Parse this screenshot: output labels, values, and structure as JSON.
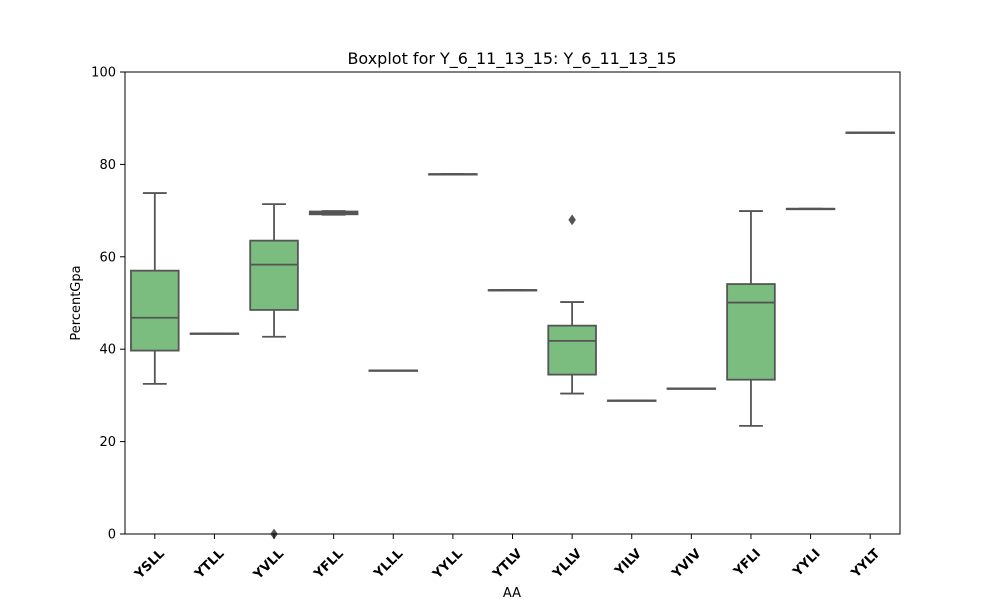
{
  "chart_data": {
    "type": "boxplot",
    "title": "Boxplot for Y_6_11_13_15: Y_6_11_13_15",
    "xlabel": "AA",
    "ylabel": "PercentGpa",
    "ylim": [
      0,
      100
    ],
    "yticks": [
      0,
      20,
      40,
      60,
      80,
      100
    ],
    "grid": false,
    "box_color": "#7bbc7f",
    "line_color": "#555555",
    "categories": [
      "YSLL",
      "YTLL",
      "YVLL",
      "YFLL",
      "YLLL",
      "YYLL",
      "YTLV",
      "YLLV",
      "YILV",
      "YVIV",
      "YFLI",
      "YYLI",
      "YYLT"
    ],
    "boxes": [
      {
        "whisker_low": 32.5,
        "q1": 39.7,
        "median": 46.8,
        "q3": 57.0,
        "whisker_high": 73.8,
        "outliers": []
      },
      {
        "whisker_low": 43.4,
        "q1": 43.4,
        "median": 43.4,
        "q3": 43.4,
        "whisker_high": 43.4,
        "outliers": []
      },
      {
        "whisker_low": 42.7,
        "q1": 48.5,
        "median": 58.3,
        "q3": 63.5,
        "whisker_high": 71.4,
        "outliers": [
          0.0
        ]
      },
      {
        "whisker_low": 69.1,
        "q1": 69.2,
        "median": 69.5,
        "q3": 69.8,
        "whisker_high": 69.9,
        "outliers": []
      },
      {
        "whisker_low": 35.4,
        "q1": 35.4,
        "median": 35.4,
        "q3": 35.4,
        "whisker_high": 35.4,
        "outliers": []
      },
      {
        "whisker_low": 77.9,
        "q1": 77.9,
        "median": 77.9,
        "q3": 77.9,
        "whisker_high": 77.9,
        "outliers": []
      },
      {
        "whisker_low": 52.8,
        "q1": 52.8,
        "median": 52.8,
        "q3": 52.8,
        "whisker_high": 52.8,
        "outliers": []
      },
      {
        "whisker_low": 30.4,
        "q1": 34.5,
        "median": 41.8,
        "q3": 45.1,
        "whisker_high": 50.2,
        "outliers": [
          68.0
        ]
      },
      {
        "whisker_low": 28.9,
        "q1": 28.9,
        "median": 28.9,
        "q3": 28.9,
        "whisker_high": 28.9,
        "outliers": []
      },
      {
        "whisker_low": 31.5,
        "q1": 31.5,
        "median": 31.5,
        "q3": 31.5,
        "whisker_high": 31.5,
        "outliers": []
      },
      {
        "whisker_low": 23.4,
        "q1": 33.4,
        "median": 50.1,
        "q3": 54.1,
        "whisker_high": 69.9,
        "outliers": []
      },
      {
        "whisker_low": 70.4,
        "q1": 70.4,
        "median": 70.4,
        "q3": 70.4,
        "whisker_high": 70.4,
        "outliers": []
      },
      {
        "whisker_low": 86.9,
        "q1": 86.9,
        "median": 86.9,
        "q3": 86.9,
        "whisker_high": 86.9,
        "outliers": []
      }
    ]
  }
}
